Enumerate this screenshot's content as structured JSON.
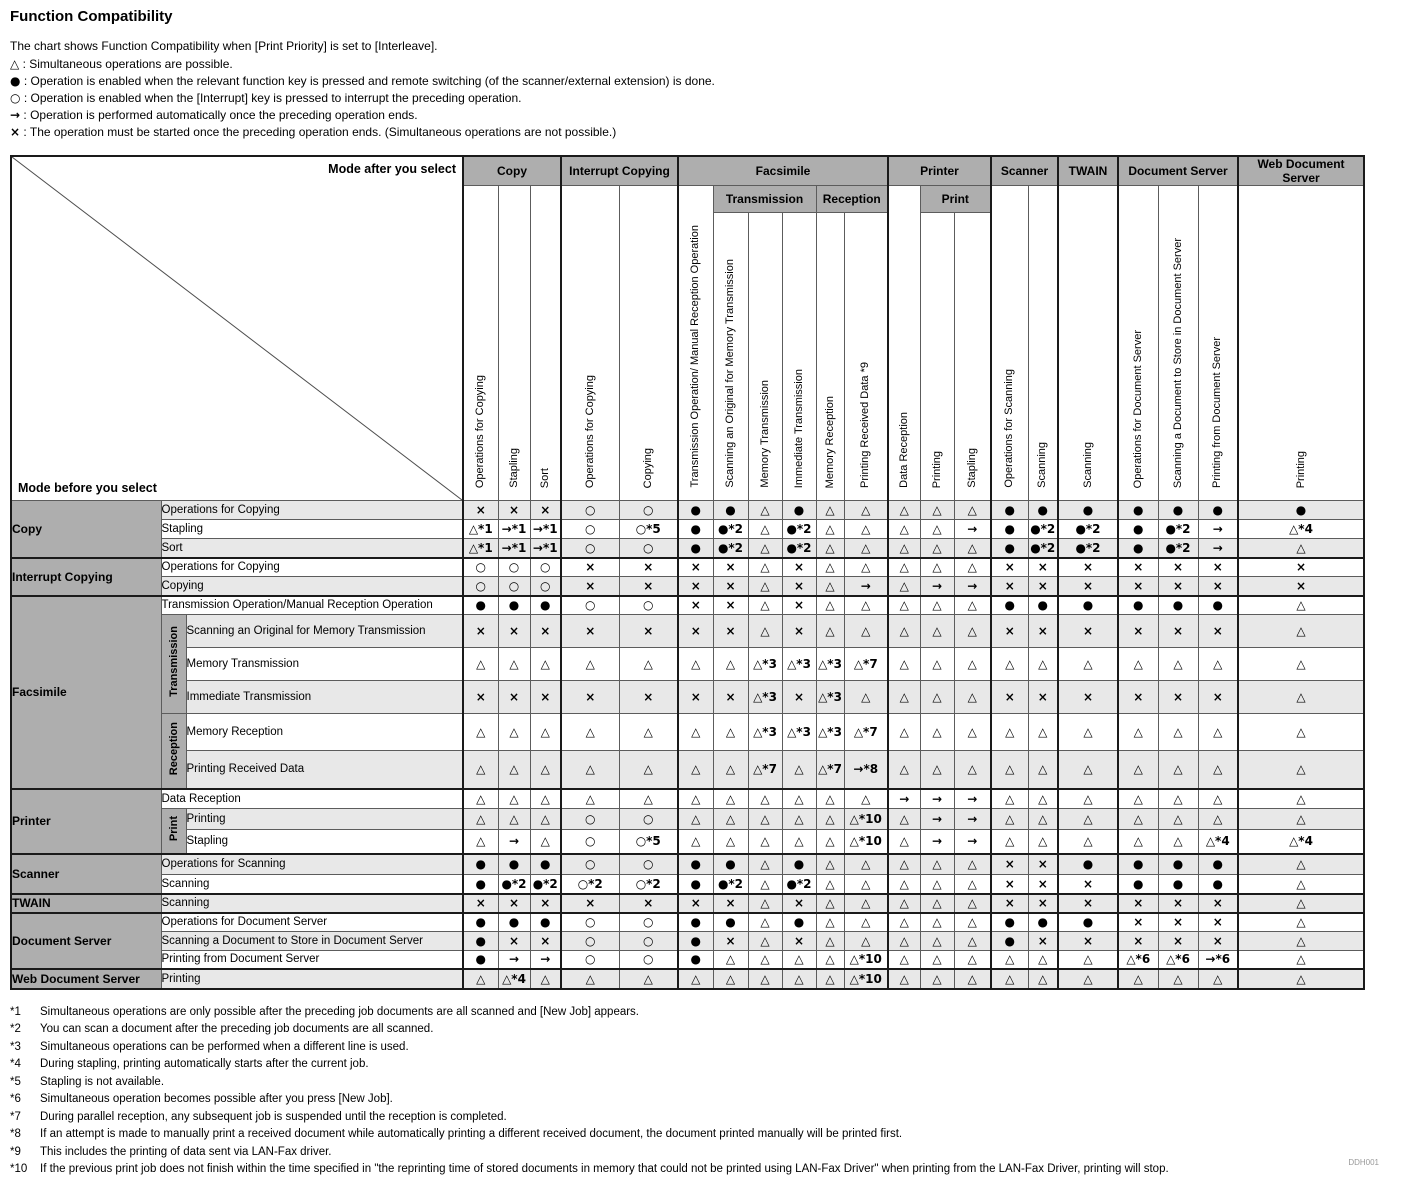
{
  "title": "Function Compatibility",
  "intro": "The chart shows Function Compatibility when [Print Priority] is set to [Interleave].",
  "legend": [
    {
      "symbol": "△",
      "text": ": Simultaneous operations are possible."
    },
    {
      "symbol": "●",
      "text": ": Operation is enabled when the relevant function key is pressed and remote switching (of the scanner/external extension) is done."
    },
    {
      "symbol": "○",
      "text": ": Operation is enabled when the [Interrupt] key is pressed to interrupt the preceding operation."
    },
    {
      "symbol": "→",
      "text": ": Operation is performed automatically once the preceding operation ends."
    },
    {
      "symbol": "×",
      "text": ": The operation must be started once the preceding operation ends. (Simultaneous operations are not possible.)"
    }
  ],
  "corner": {
    "after": "Mode after you select",
    "before": "Mode before you select"
  },
  "columns": {
    "groups": [
      {
        "label": "Copy",
        "span": 3
      },
      {
        "label": "Interrupt Copying",
        "span": 2
      },
      {
        "label": "Facsimile",
        "span": 6,
        "subgroups": [
          {
            "label": null,
            "span": 1
          },
          {
            "label": "Transmission",
            "span": 3
          },
          {
            "label": "Reception",
            "span": 2
          }
        ]
      },
      {
        "label": "Printer",
        "span": 3,
        "subgroups": [
          {
            "label": null,
            "span": 1
          },
          {
            "label": "Print",
            "span": 2
          }
        ]
      },
      {
        "label": "Scanner",
        "span": 2
      },
      {
        "label": "TWAIN",
        "span": 1
      },
      {
        "label": "Document Server",
        "span": 3
      },
      {
        "label": "Web Document Server",
        "span": 1
      }
    ],
    "leaves": [
      "Operations for Copying",
      "Stapling",
      "Sort",
      "Operations for Copying",
      "Copying",
      "Transmission Operation/ Manual Reception Operation",
      "Scanning an Original for Memory Transmission",
      "Memory Transmission",
      "Immediate Transmission",
      "Memory Reception",
      "Printing Received Data *9",
      "Data Reception",
      "Printing",
      "Stapling",
      "Operations for Scanning",
      "Scanning",
      "Scanning",
      "Operations for Document Server",
      "Scanning a Document to Store in Document Server",
      "Printing from Document Server",
      "Printing"
    ]
  },
  "row_groups": [
    {
      "label": "Copy",
      "rows": [
        {
          "label": "Operations for Copying",
          "cells": [
            "×",
            "×",
            "×",
            "○",
            "○",
            "●",
            "●",
            "△",
            "●",
            "△",
            "△",
            "△",
            "△",
            "△",
            "●",
            "●",
            "●",
            "●",
            "●",
            "●",
            "●"
          ]
        },
        {
          "label": "Stapling",
          "cells": [
            "△*1",
            "→*1",
            "→*1",
            "○",
            "○*5",
            "●",
            "●*2",
            "△",
            "●*2",
            "△",
            "△",
            "△",
            "△",
            "→",
            "●",
            "●*2",
            "●*2",
            "●",
            "●*2",
            "→",
            "△*4"
          ]
        },
        {
          "label": "Sort",
          "cells": [
            "△*1",
            "→*1",
            "→*1",
            "○",
            "○",
            "●",
            "●*2",
            "△",
            "●*2",
            "△",
            "△",
            "△",
            "△",
            "△",
            "●",
            "●*2",
            "●*2",
            "●",
            "●*2",
            "→",
            "△"
          ]
        }
      ]
    },
    {
      "label": "Interrupt Copying",
      "rows": [
        {
          "label": "Operations for Copying",
          "cells": [
            "○",
            "○",
            "○",
            "×",
            "×",
            "×",
            "×",
            "△",
            "×",
            "△",
            "△",
            "△",
            "△",
            "△",
            "×",
            "×",
            "×",
            "×",
            "×",
            "×",
            "×"
          ]
        },
        {
          "label": "Copying",
          "cells": [
            "○",
            "○",
            "○",
            "×",
            "×",
            "×",
            "×",
            "△",
            "×",
            "△",
            "→",
            "△",
            "→",
            "→",
            "×",
            "×",
            "×",
            "×",
            "×",
            "×",
            "×"
          ]
        }
      ]
    },
    {
      "label": "Facsimile",
      "rows": [
        {
          "label": "Transmission Operation/Manual Reception Operation",
          "cells": [
            "●",
            "●",
            "●",
            "○",
            "○",
            "×",
            "×",
            "△",
            "×",
            "△",
            "△",
            "△",
            "△",
            "△",
            "●",
            "●",
            "●",
            "●",
            "●",
            "●",
            "△"
          ]
        },
        {
          "label": "Scanning an Original for Memory Transmission",
          "sub": "Transmission",
          "cells": [
            "×",
            "×",
            "×",
            "×",
            "×",
            "×",
            "×",
            "△",
            "×",
            "△",
            "△",
            "△",
            "△",
            "△",
            "×",
            "×",
            "×",
            "×",
            "×",
            "×",
            "△"
          ]
        },
        {
          "label": "Memory Transmission",
          "sub": "Transmission",
          "cells": [
            "△",
            "△",
            "△",
            "△",
            "△",
            "△",
            "△",
            "△*3",
            "△*3",
            "△*3",
            "△*7",
            "△",
            "△",
            "△",
            "△",
            "△",
            "△",
            "△",
            "△",
            "△",
            "△"
          ]
        },
        {
          "label": "Immediate Transmission",
          "sub": "Transmission",
          "cells": [
            "×",
            "×",
            "×",
            "×",
            "×",
            "×",
            "×",
            "△*3",
            "×",
            "△*3",
            "△",
            "△",
            "△",
            "△",
            "×",
            "×",
            "×",
            "×",
            "×",
            "×",
            "△"
          ]
        },
        {
          "label": "Memory Reception",
          "sub": "Reception",
          "cells": [
            "△",
            "△",
            "△",
            "△",
            "△",
            "△",
            "△",
            "△*3",
            "△*3",
            "△*3",
            "△*7",
            "△",
            "△",
            "△",
            "△",
            "△",
            "△",
            "△",
            "△",
            "△",
            "△"
          ]
        },
        {
          "label": "Printing Received Data",
          "sub": "Reception",
          "cells": [
            "△",
            "△",
            "△",
            "△",
            "△",
            "△",
            "△",
            "△*7",
            "△",
            "△*7",
            "→*8",
            "△",
            "△",
            "△",
            "△",
            "△",
            "△",
            "△",
            "△",
            "△",
            "△"
          ]
        }
      ]
    },
    {
      "label": "Printer",
      "rows": [
        {
          "label": "Data Reception",
          "cells": [
            "△",
            "△",
            "△",
            "△",
            "△",
            "△",
            "△",
            "△",
            "△",
            "△",
            "△",
            "→",
            "→",
            "→",
            "△",
            "△",
            "△",
            "△",
            "△",
            "△",
            "△"
          ]
        },
        {
          "label": "Printing",
          "sub": "Print",
          "cells": [
            "△",
            "△",
            "△",
            "○",
            "○",
            "△",
            "△",
            "△",
            "△",
            "△",
            "△*10",
            "△",
            "→",
            "→",
            "△",
            "△",
            "△",
            "△",
            "△",
            "△",
            "△"
          ]
        },
        {
          "label": "Stapling",
          "sub": "Print",
          "cells": [
            "△",
            "→",
            "△",
            "○",
            "○*5",
            "△",
            "△",
            "△",
            "△",
            "△",
            "△*10",
            "△",
            "→",
            "→",
            "△",
            "△",
            "△",
            "△",
            "△",
            "△*4",
            "△*4"
          ]
        }
      ]
    },
    {
      "label": "Scanner",
      "rows": [
        {
          "label": "Operations for Scanning",
          "cells": [
            "●",
            "●",
            "●",
            "○",
            "○",
            "●",
            "●",
            "△",
            "●",
            "△",
            "△",
            "△",
            "△",
            "△",
            "×",
            "×",
            "●",
            "●",
            "●",
            "●",
            "△"
          ]
        },
        {
          "label": "Scanning",
          "cells": [
            "●",
            "●*2",
            "●*2",
            "○*2",
            "○*2",
            "●",
            "●*2",
            "△",
            "●*2",
            "△",
            "△",
            "△",
            "△",
            "△",
            "×",
            "×",
            "×",
            "●",
            "●",
            "●",
            "△"
          ]
        }
      ]
    },
    {
      "label": "TWAIN",
      "rows": [
        {
          "label": "Scanning",
          "cells": [
            "×",
            "×",
            "×",
            "×",
            "×",
            "×",
            "×",
            "△",
            "×",
            "△",
            "△",
            "△",
            "△",
            "△",
            "×",
            "×",
            "×",
            "×",
            "×",
            "×",
            "△"
          ]
        }
      ]
    },
    {
      "label": "Document Server",
      "rows": [
        {
          "label": "Operations for Document Server",
          "cells": [
            "●",
            "●",
            "●",
            "○",
            "○",
            "●",
            "●",
            "△",
            "●",
            "△",
            "△",
            "△",
            "△",
            "△",
            "●",
            "●",
            "●",
            "×",
            "×",
            "×",
            "△"
          ]
        },
        {
          "label": "Scanning a Document to Store in Document Server",
          "cells": [
            "●",
            "×",
            "×",
            "○",
            "○",
            "●",
            "×",
            "△",
            "×",
            "△",
            "△",
            "△",
            "△",
            "△",
            "●",
            "×",
            "×",
            "×",
            "×",
            "×",
            "△"
          ]
        },
        {
          "label": "Printing from Document Server",
          "cells": [
            "●",
            "→",
            "→",
            "○",
            "○",
            "●",
            "△",
            "△",
            "△",
            "△",
            "△*10",
            "△",
            "△",
            "△",
            "△",
            "△",
            "△",
            "△*6",
            "△*6",
            "→*6",
            "△"
          ]
        }
      ]
    },
    {
      "label": "Web Document Server",
      "rows": [
        {
          "label": "Printing",
          "cells": [
            "△",
            "△*4",
            "△",
            "△",
            "△",
            "△",
            "△",
            "△",
            "△",
            "△",
            "△*10",
            "△",
            "△",
            "△",
            "△",
            "△",
            "△",
            "△",
            "△",
            "△",
            "△"
          ]
        }
      ]
    }
  ],
  "footnotes": [
    {
      "num": "*1",
      "text": "Simultaneous operations are only possible after the preceding job documents are all scanned and [New Job] appears."
    },
    {
      "num": "*2",
      "text": "You can scan a document after the preceding job documents are all scanned."
    },
    {
      "num": "*3",
      "text": "Simultaneous operations can be performed when a different line is used."
    },
    {
      "num": "*4",
      "text": "During stapling, printing automatically starts after the current job."
    },
    {
      "num": "*5",
      "text": "Stapling is not available."
    },
    {
      "num": "*6",
      "text": "Simultaneous operation becomes possible after you press [New Job]."
    },
    {
      "num": "*7",
      "text": "During parallel reception, any subsequent job is suspended until the reception is completed."
    },
    {
      "num": "*8",
      "text": "If an attempt is made to manually print a received document while automatically printing a different received document, the document printed manually will be printed first."
    },
    {
      "num": "*9",
      "text": "This includes the printing of data sent via LAN-Fax driver."
    },
    {
      "num": "*10",
      "text": "If the previous print job does not finish within the time specified in \"the reprinting time of stored documents in memory that could not be printed using LAN-Fax Driver\" when printing from the LAN-Fax Driver, printing will stop."
    }
  ],
  "code": "DDH001"
}
